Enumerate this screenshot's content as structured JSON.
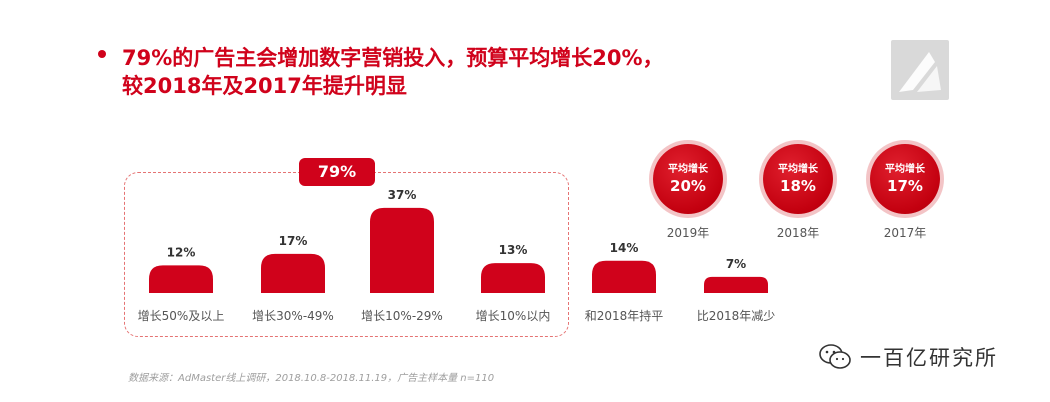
{
  "headline": {
    "line1": "79%的广告主会增加数字营销投入，预算平均增长20%，",
    "line2": "较2018年及2017年提升明显"
  },
  "group_badge": "79%",
  "chart_data": {
    "type": "bar",
    "categories": [
      "增长50%及以上",
      "增长30%-49%",
      "增长10%-29%",
      "增长10%以内",
      "和2018年持平",
      "比2018年减少"
    ],
    "values": [
      12,
      17,
      37,
      13,
      14,
      7
    ],
    "value_labels": [
      "12%",
      "17%",
      "37%",
      "13%",
      "14%",
      "7%"
    ],
    "unit": "%",
    "bar_color": "#d0021b",
    "grouped_total_label": "79%"
  },
  "avg_growth": [
    {
      "label": "平均增长",
      "value": "20%",
      "year": "2019年"
    },
    {
      "label": "平均增长",
      "value": "18%",
      "year": "2018年"
    },
    {
      "label": "平均增长",
      "value": "17%",
      "year": "2017年"
    }
  ],
  "source": "数据来源：AdMaster线上调研，2018.10.8-2018.11.19，广告主样本量 n=110",
  "watermark": "一百亿研究所",
  "colors": {
    "accent": "#d0021b",
    "circle_ring": "#f3c4c6",
    "text_gray": "#555555"
  },
  "icons": {
    "logo": "triangle-logo-icon",
    "watermark": "wechat-icon"
  }
}
